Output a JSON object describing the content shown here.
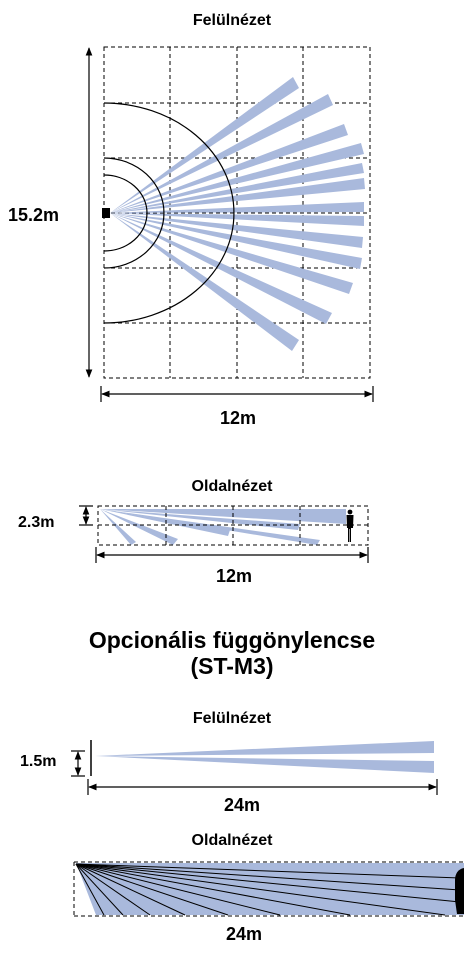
{
  "top_view": {
    "title": "Felülnézet",
    "height_label": "15.2m",
    "width_label": "12m"
  },
  "side_view": {
    "title": "Oldalnézet",
    "height_label": "2.3m",
    "width_label": "12m"
  },
  "curtain": {
    "heading_line1": "Opcionális függönylencse",
    "heading_line2": "(ST-M3)",
    "top_view": {
      "title": "Felülnézet",
      "height_label": "1.5m",
      "width_label": "24m"
    },
    "side_view": {
      "title": "Oldalnézet",
      "width_label": "24m"
    }
  },
  "colors": {
    "beam": "#a9b9dc",
    "line": "#000000"
  },
  "icons": [
    "detector-icon",
    "person-icon"
  ]
}
